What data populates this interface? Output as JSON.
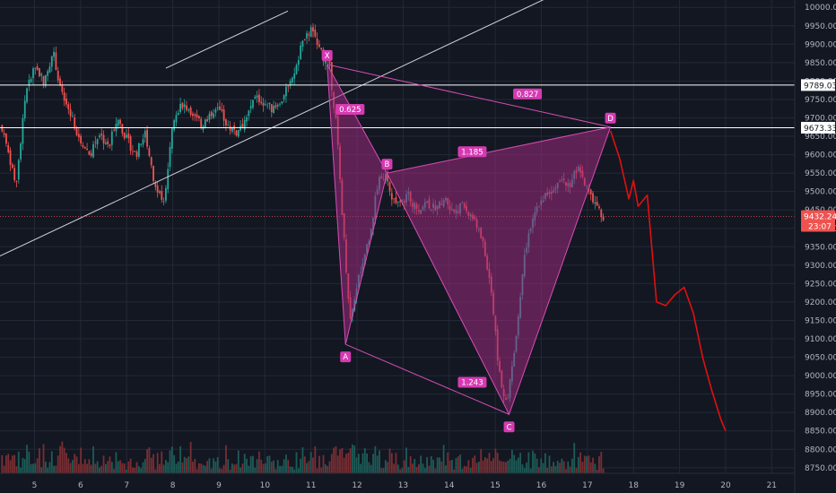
{
  "chart_data": {
    "type": "candlestick",
    "title": "",
    "xlabel": "",
    "ylabel": "",
    "x_ticks": [
      "5",
      "6",
      "7",
      "8",
      "9",
      "10",
      "11",
      "12",
      "13",
      "14",
      "15",
      "16",
      "17",
      "18",
      "19",
      "20",
      "21"
    ],
    "x_range": [
      4.25,
      21.5
    ],
    "y_ticks": [
      "10000.00",
      "9950.00",
      "9900.00",
      "9850.00",
      "9800.00",
      "9750.00",
      "9700.00",
      "9650.00",
      "9600.00",
      "9550.00",
      "9500.00",
      "9450.00",
      "9400.00",
      "9350.00",
      "9300.00",
      "9250.00",
      "9200.00",
      "9150.00",
      "9100.00",
      "9050.00",
      "9000.00",
      "8950.00",
      "8900.00",
      "8850.00",
      "8800.00",
      "8750.00"
    ],
    "y_range": [
      8735,
      10020
    ],
    "grid": true,
    "price_segments": [
      {
        "x": [
          4.25,
          4.4,
          4.6,
          4.8,
          5.0,
          5.2,
          5.4,
          5.6,
          5.8,
          6.0,
          6.2,
          6.4,
          6.6,
          6.8,
          7.0,
          7.2,
          7.4,
          7.6,
          7.8
        ],
        "y": [
          9680,
          9620,
          9520,
          9760,
          9840,
          9800,
          9880,
          9760,
          9700,
          9640,
          9600,
          9660,
          9620,
          9700,
          9640,
          9600,
          9660,
          9520,
          9460
        ]
      },
      {
        "x": [
          7.8,
          8.0,
          8.2,
          8.4,
          8.6,
          8.8,
          9.0,
          9.2,
          9.4,
          9.6,
          9.8,
          10.0,
          10.2,
          10.4,
          10.6,
          10.8,
          11.0,
          11.2,
          11.4
        ],
        "y": [
          9460,
          9700,
          9740,
          9720,
          9680,
          9700,
          9720,
          9680,
          9660,
          9700,
          9760,
          9740,
          9720,
          9760,
          9800,
          9900,
          9940,
          9880,
          9840
        ]
      },
      {
        "x": [
          11.4,
          11.55,
          11.7,
          11.85,
          12.0,
          12.15,
          12.3,
          12.45,
          12.6,
          12.75,
          12.9,
          13.1,
          13.3,
          13.5,
          13.7,
          13.9,
          14.1,
          14.3,
          14.5,
          14.7,
          14.9,
          15.05,
          15.2,
          15.3,
          15.45,
          15.6,
          15.8,
          16.0,
          16.2,
          16.4,
          16.6,
          16.8,
          17.0,
          17.2,
          17.35
        ],
        "y": [
          9840,
          9680,
          9400,
          9150,
          9250,
          9320,
          9400,
          9520,
          9550,
          9480,
          9460,
          9490,
          9450,
          9470,
          9450,
          9480,
          9450,
          9460,
          9430,
          9380,
          9250,
          9050,
          8920,
          8960,
          9100,
          9300,
          9420,
          9480,
          9500,
          9540,
          9520,
          9560,
          9500,
          9460,
          9432
        ]
      }
    ],
    "volume": "relative bar heights only",
    "annotations": {
      "xabcd_points": [
        {
          "label": "X",
          "x": 11.35,
          "y": 9845
        },
        {
          "label": "A",
          "x": 11.75,
          "y": 9085
        },
        {
          "label": "B",
          "x": 12.65,
          "y": 9550
        },
        {
          "label": "C",
          "x": 15.3,
          "y": 8895
        },
        {
          "label": "D",
          "x": 17.5,
          "y": 9675
        }
      ],
      "ratios": [
        {
          "label": "0.625",
          "x": 11.85,
          "y": 9723
        },
        {
          "label": "1.185",
          "x": 14.5,
          "y": 9608
        },
        {
          "label": "1.243",
          "x": 14.5,
          "y": 8982
        },
        {
          "label": "0.827",
          "x": 15.7,
          "y": 9765
        }
      ],
      "horizontal_levels": [
        {
          "value": 9789.03,
          "label": "9789.03"
        },
        {
          "value": 9673.33,
          "label": "9673.33"
        }
      ],
      "current_price": {
        "value": 9432.24,
        "label": "9432.24",
        "countdown": "23:07"
      },
      "projection": {
        "x": [
          17.5,
          17.7,
          17.9,
          18.0,
          18.1,
          18.3,
          18.5,
          18.7,
          18.9,
          19.1,
          19.3,
          19.5,
          19.7,
          19.9,
          20.0
        ],
        "y": [
          9665,
          9590,
          9480,
          9530,
          9460,
          9490,
          9200,
          9190,
          9220,
          9240,
          9170,
          9050,
          8960,
          8880,
          8850
        ]
      },
      "trendlines": [
        {
          "x": [
            7.85,
            10.5
          ],
          "y": [
            9835,
            9990
          ]
        },
        {
          "x": [
            4.25,
            16.2
          ],
          "y": [
            9325,
            10030
          ]
        }
      ]
    },
    "colors": {
      "background": "#131722",
      "up": "#26a69a",
      "down": "#ef5350",
      "harmonic_fill": "#9c2a7e",
      "harmonic_line": "#d64db3",
      "label_bg": "#d63ab2",
      "projection": "#e01010",
      "price_tag": "#ef5350"
    }
  }
}
